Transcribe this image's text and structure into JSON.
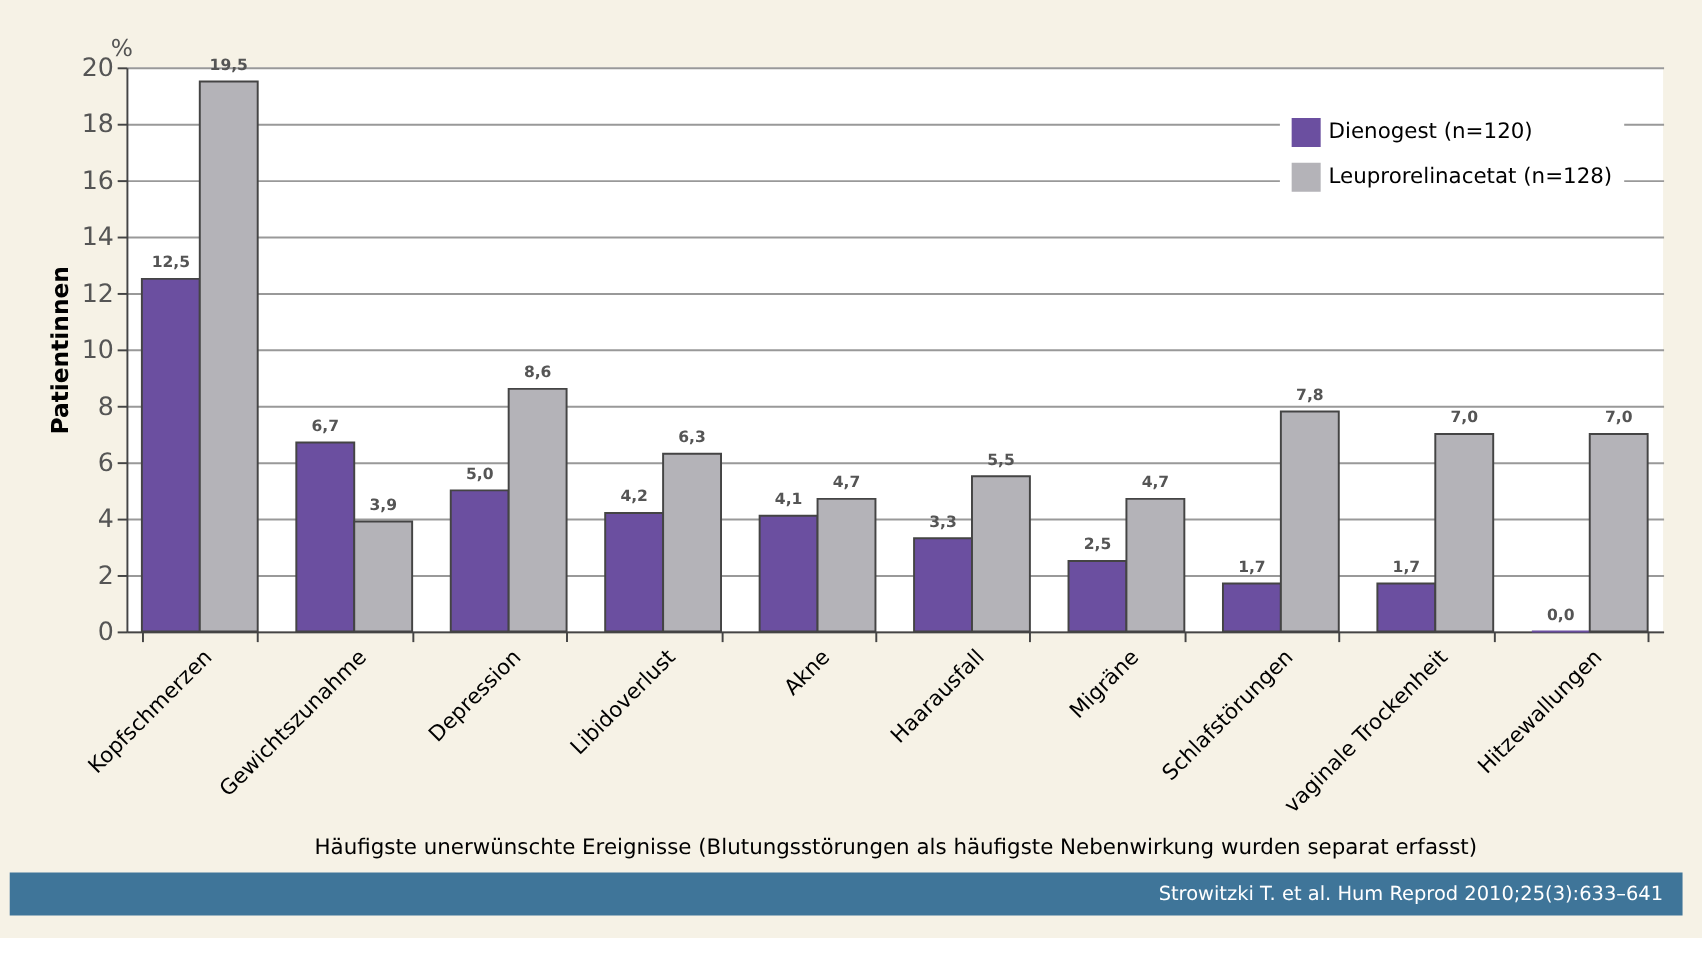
{
  "chart_data": {
    "type": "bar",
    "ylabel": "Patientinnen",
    "xlabel": "Häufigste unerwünschte Ereignisse (Blutungsstörungen als häufigste Nebenwirkung wurden separat erfasst)",
    "categories": [
      "Kopfschmerzen",
      "Gewichtszunahme",
      "Depression",
      "Libidoverlust",
      "Akne",
      "Haarausfall",
      "Migräne",
      "Schlafstörungen",
      "vaginale Trockenheit",
      "Hitzewallungen"
    ],
    "series": [
      {
        "name": "Dienogest (n=120)",
        "color": "#6b4fa0",
        "values": [
          12.5,
          6.7,
          5.0,
          4.2,
          4.1,
          3.3,
          2.5,
          1.7,
          1.7,
          0.0
        ],
        "value_labels": [
          "12,5",
          "6,7",
          "5,0",
          "4,2",
          "4,1",
          "3,3",
          "2,5",
          "1,7",
          "1,7",
          "0,0"
        ]
      },
      {
        "name": "Leuprorelinacetat (n=128)",
        "color": "#b4b3b8",
        "values": [
          19.5,
          3.9,
          8.6,
          6.3,
          4.7,
          5.5,
          4.7,
          7.8,
          7.0,
          7.0
        ],
        "value_labels": [
          "19,5",
          "3,9",
          "8,6",
          "6,3",
          "4,7",
          "5,5",
          "4,7",
          "7,8",
          "7,0",
          "7,0"
        ]
      }
    ],
    "ylim": [
      0,
      20
    ],
    "yticks": [
      0,
      2,
      4,
      6,
      8,
      10,
      12,
      14,
      16,
      18,
      20
    ],
    "grid": "y",
    "legend": "top right",
    "annotations": [
      "%",
      "Strowitzki T. et al. Hum Reprod 2010;25(3):633–641"
    ]
  }
}
